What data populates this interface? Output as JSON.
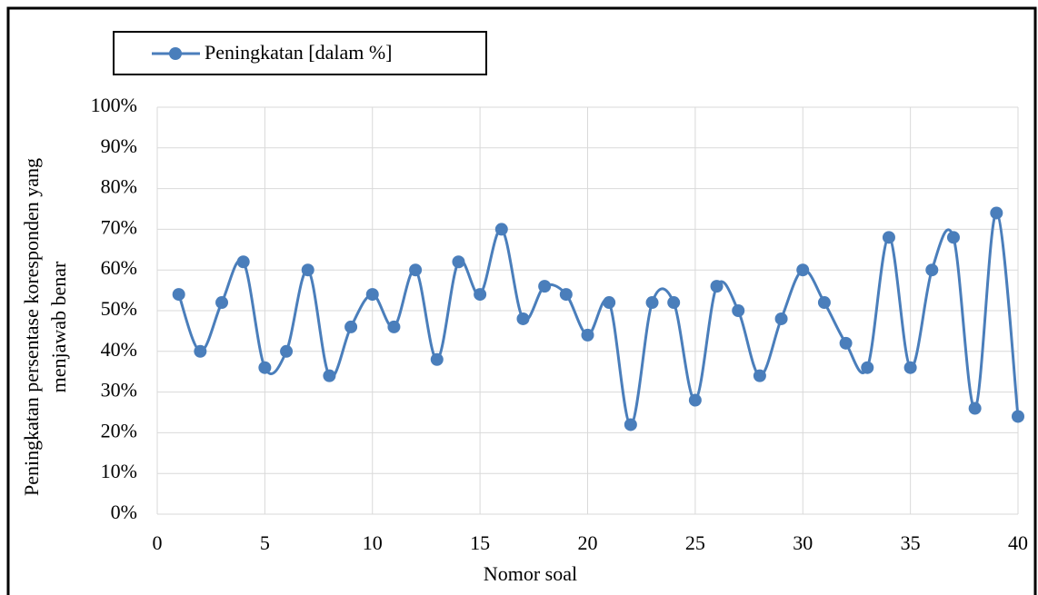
{
  "chart_data": {
    "type": "line",
    "xlabel": "Nomor  soal",
    "ylabel": [
      "Peningkatan persentase koresponden yang",
      "menjawab benar"
    ],
    "x": [
      1,
      2,
      3,
      4,
      5,
      6,
      7,
      8,
      9,
      10,
      11,
      12,
      13,
      14,
      15,
      16,
      17,
      18,
      19,
      20,
      21,
      22,
      23,
      24,
      25,
      26,
      27,
      28,
      29,
      30,
      31,
      32,
      33,
      34,
      35,
      36,
      37,
      38,
      39,
      40
    ],
    "series": [
      {
        "name": "Peningkatan [dalam %]",
        "color": "#4a7ebb",
        "values": [
          54,
          40,
          52,
          62,
          36,
          40,
          60,
          34,
          46,
          54,
          46,
          60,
          38,
          62,
          54,
          70,
          48,
          56,
          54,
          44,
          52,
          22,
          52,
          52,
          28,
          56,
          50,
          34,
          48,
          60,
          52,
          42,
          36,
          68,
          36,
          60,
          68,
          26,
          74,
          24
        ]
      }
    ],
    "xlim": [
      0,
      40
    ],
    "xticks": [
      0,
      5,
      10,
      15,
      20,
      25,
      30,
      35,
      40
    ],
    "ylim": [
      0,
      100
    ],
    "yticks": [
      {
        "value": 0,
        "label": "0%"
      },
      {
        "value": 10,
        "label": "10%"
      },
      {
        "value": 20,
        "label": "20%"
      },
      {
        "value": 30,
        "label": "30%"
      },
      {
        "value": 40,
        "label": "40%"
      },
      {
        "value": 50,
        "label": "50%"
      },
      {
        "value": 60,
        "label": "60%"
      },
      {
        "value": 70,
        "label": "70%"
      },
      {
        "value": 80,
        "label": "80%"
      },
      {
        "value": 90,
        "label": "90%"
      },
      {
        "value": 100,
        "label": "100%"
      }
    ],
    "grid": true,
    "legend": "top-left",
    "smooth": true
  }
}
